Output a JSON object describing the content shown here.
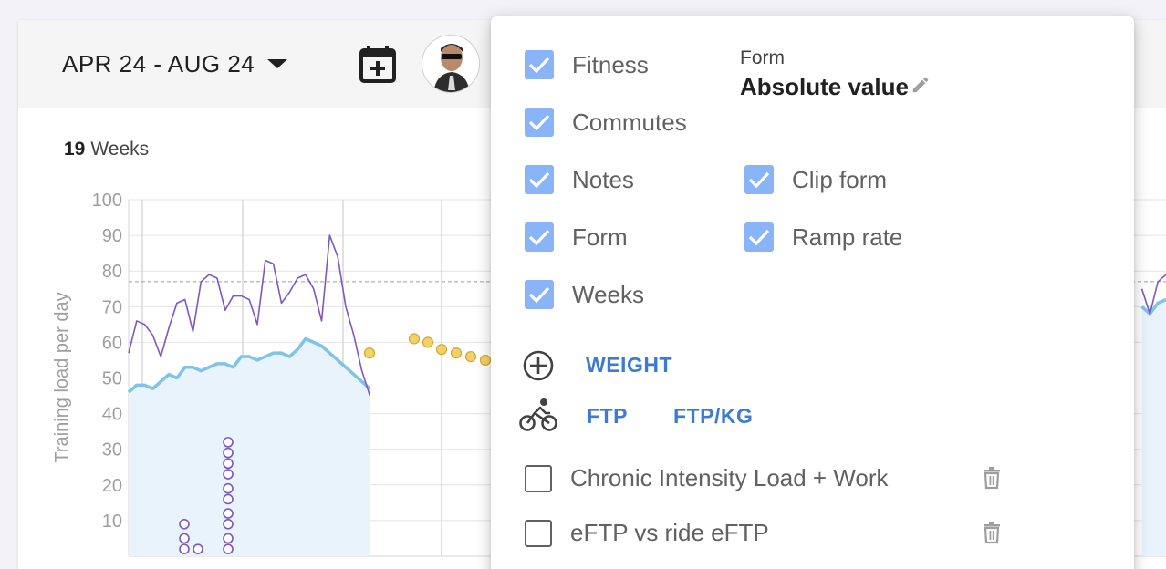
{
  "header": {
    "date_range": "APR 24 - AUG 24",
    "icons": [
      "calendar-plus-icon",
      "chevron-down-icon",
      "avatar"
    ]
  },
  "summary": {
    "weeks_count": "19",
    "weeks_label": "Weeks"
  },
  "chart_data": {
    "type": "line",
    "ylabel": "Training load per day",
    "yticks": [
      "100",
      "90",
      "80",
      "70",
      "60",
      "50",
      "40",
      "30",
      "20",
      "10"
    ],
    "ylim": [
      0,
      100
    ],
    "grid": true,
    "reference_line": 77,
    "series": [
      {
        "color": "#7e57c2",
        "values": [
          57,
          66,
          65,
          62,
          56,
          64,
          71,
          72,
          63,
          77,
          79,
          78,
          69,
          73,
          73,
          72,
          65,
          83,
          82,
          71,
          74,
          78,
          79,
          75,
          66,
          90,
          84,
          70,
          62,
          52,
          45,
          null,
          null,
          null,
          null,
          null,
          null,
          null,
          null,
          null,
          null,
          null,
          null,
          null,
          null,
          null,
          null,
          null,
          null,
          null,
          null,
          null,
          null,
          null,
          null,
          null,
          null,
          null,
          null,
          null,
          null,
          null,
          null,
          null,
          null,
          null,
          null,
          null,
          null,
          null,
          null,
          null,
          null,
          null,
          null,
          null,
          null,
          null,
          null,
          null,
          null,
          null,
          null,
          null,
          null,
          null,
          null,
          null,
          null,
          null,
          null,
          null,
          null,
          null,
          null,
          null,
          null,
          null,
          null,
          null,
          null,
          null,
          null,
          null,
          null,
          null,
          null,
          null,
          null,
          null,
          null,
          null,
          null,
          null,
          null,
          null,
          null,
          null,
          null,
          null,
          null,
          null,
          null,
          null,
          null,
          null,
          75,
          68,
          77,
          79
        ]
      },
      {
        "color": "#7ec3e8",
        "values": [
          46,
          48,
          48,
          47,
          49,
          51,
          50,
          53,
          53,
          52,
          53,
          54,
          54,
          53,
          56,
          56,
          55,
          56,
          57,
          57,
          56,
          58,
          61,
          60,
          59,
          57,
          55,
          53,
          51,
          49,
          47,
          null,
          null,
          null,
          null,
          null,
          null,
          null,
          null,
          null,
          null,
          null,
          null,
          null,
          null,
          null,
          null,
          null,
          null,
          null,
          null,
          null,
          null,
          null,
          null,
          null,
          null,
          null,
          null,
          null,
          null,
          null,
          null,
          null,
          null,
          null,
          null,
          null,
          null,
          null,
          null,
          null,
          null,
          null,
          null,
          null,
          null,
          null,
          null,
          null,
          null,
          null,
          null,
          null,
          null,
          null,
          null,
          null,
          null,
          null,
          null,
          null,
          null,
          null,
          null,
          null,
          null,
          null,
          null,
          null,
          null,
          null,
          null,
          null,
          null,
          null,
          null,
          null,
          null,
          null,
          null,
          null,
          null,
          null,
          null,
          null,
          null,
          null,
          null,
          null,
          null,
          null,
          null,
          null,
          null,
          null,
          70,
          68,
          71,
          72
        ]
      }
    ],
    "note_markers": [
      57,
      61,
      60,
      58,
      57,
      56,
      55,
      54
    ],
    "commute_stacks": [
      {
        "count": 3,
        "values": [
          2,
          5,
          9
        ]
      },
      {
        "count": 1,
        "values": [
          2
        ]
      },
      {
        "count": 10,
        "values": [
          2,
          5,
          9,
          12,
          16,
          19,
          23,
          26,
          29,
          32
        ]
      }
    ]
  },
  "panel": {
    "checkboxes": [
      {
        "label": "Fitness",
        "checked": true
      },
      {
        "label": "Commutes",
        "checked": true
      },
      {
        "label": "Notes",
        "checked": true
      },
      {
        "label": "Form",
        "checked": true
      },
      {
        "label": "Weeks",
        "checked": true
      },
      {
        "label": "Clip form",
        "checked": true
      },
      {
        "label": "Ramp rate",
        "checked": true
      }
    ],
    "form_caption": "Form",
    "form_value": "Absolute value",
    "add_weight_label": "WEIGHT",
    "ftp_label": "FTP",
    "ftp_kg_label": "FTP/KG",
    "custom_charts": [
      {
        "label": "Chronic Intensity Load + Work",
        "checked": false
      },
      {
        "label": "eFTP vs ride eFTP",
        "checked": false
      }
    ],
    "accent": "#8ab4f8",
    "link_color": "#3d7ad6"
  }
}
